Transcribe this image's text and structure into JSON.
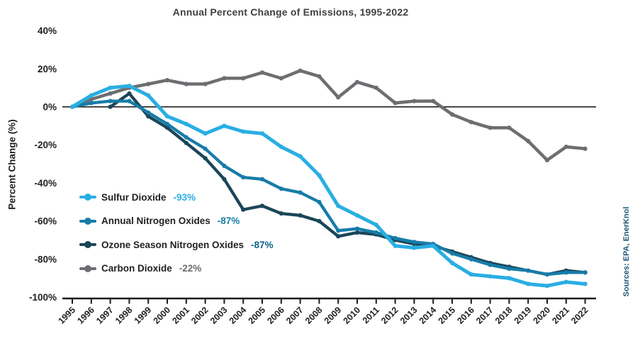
{
  "title": "Annual Percent Change of Emissions, 1995-2022",
  "source_note": "Sources: EPA, EnerKnol",
  "colors": {
    "title": "#414042",
    "axis": "#1a1a1a",
    "source_text": "#1E5878"
  },
  "chart_data": {
    "type": "line",
    "title": "Annual Percent Change of Emissions, 1995-2022",
    "xlabel": "",
    "ylabel": "Percent Change (%)",
    "ylim": [
      -100,
      40
    ],
    "yticks": [
      40,
      20,
      0,
      -20,
      -40,
      -60,
      -80,
      -100
    ],
    "ytick_labels": [
      "40%",
      "20%",
      "0%",
      "-20%",
      "-40%",
      "-60%",
      "-80%",
      "-100%"
    ],
    "grid": false,
    "legend_position": "inside-left",
    "x": [
      1995,
      1996,
      1997,
      1998,
      1999,
      2000,
      2001,
      2002,
      2003,
      2004,
      2005,
      2006,
      2007,
      2008,
      2009,
      2010,
      2011,
      2012,
      2013,
      2014,
      2015,
      2016,
      2017,
      2018,
      2019,
      2020,
      2021,
      2022
    ],
    "series": [
      {
        "name": "Sulfur Dioxide",
        "final_label": "-93%",
        "color": "#29AEE3",
        "value_color": "#29AEE3",
        "values": [
          0,
          6,
          10,
          11,
          6,
          -5,
          -9,
          -14,
          -10,
          -13,
          -14,
          -21,
          -26,
          -36,
          -52,
          -57,
          -62,
          -73,
          -74,
          -73,
          -82,
          -88,
          -89,
          -90,
          -93,
          -94,
          -92,
          -93
        ]
      },
      {
        "name": "Annual Nitrogen Oxides",
        "final_label": "-87%",
        "color": "#177CA8",
        "value_color": "#177CA8",
        "values": [
          0,
          2,
          3,
          3,
          -3,
          -9,
          -16,
          -22,
          -31,
          -37,
          -38,
          -43,
          -45,
          -50,
          -65,
          -64,
          -66,
          -69,
          -71,
          -72,
          -77,
          -80,
          -83,
          -85,
          -86,
          -88,
          -87,
          -87
        ]
      },
      {
        "name": "Ozone Season Nitrogen Oxides",
        "final_label": "-87%",
        "color": "#1A4659",
        "value_color": "#10638C",
        "values": [
          null,
          null,
          0,
          7,
          -5,
          -11,
          -19,
          -27,
          -38,
          -54,
          -52,
          -56,
          -57,
          -60,
          -68,
          -66,
          -67,
          -70,
          -72,
          -73,
          -76,
          -79,
          -82,
          -84,
          -86,
          -88,
          -86,
          -87
        ]
      },
      {
        "name": "Carbon Dioxide",
        "final_label": "-22%",
        "color": "#6D6E71",
        "value_color": "#6D6E71",
        "values": [
          0,
          4,
          7,
          10,
          12,
          14,
          12,
          12,
          15,
          15,
          18,
          15,
          19,
          16,
          5,
          13,
          10,
          2,
          3,
          3,
          -4,
          -8,
          -11,
          -11,
          -18,
          -28,
          -21,
          -22
        ]
      }
    ]
  }
}
